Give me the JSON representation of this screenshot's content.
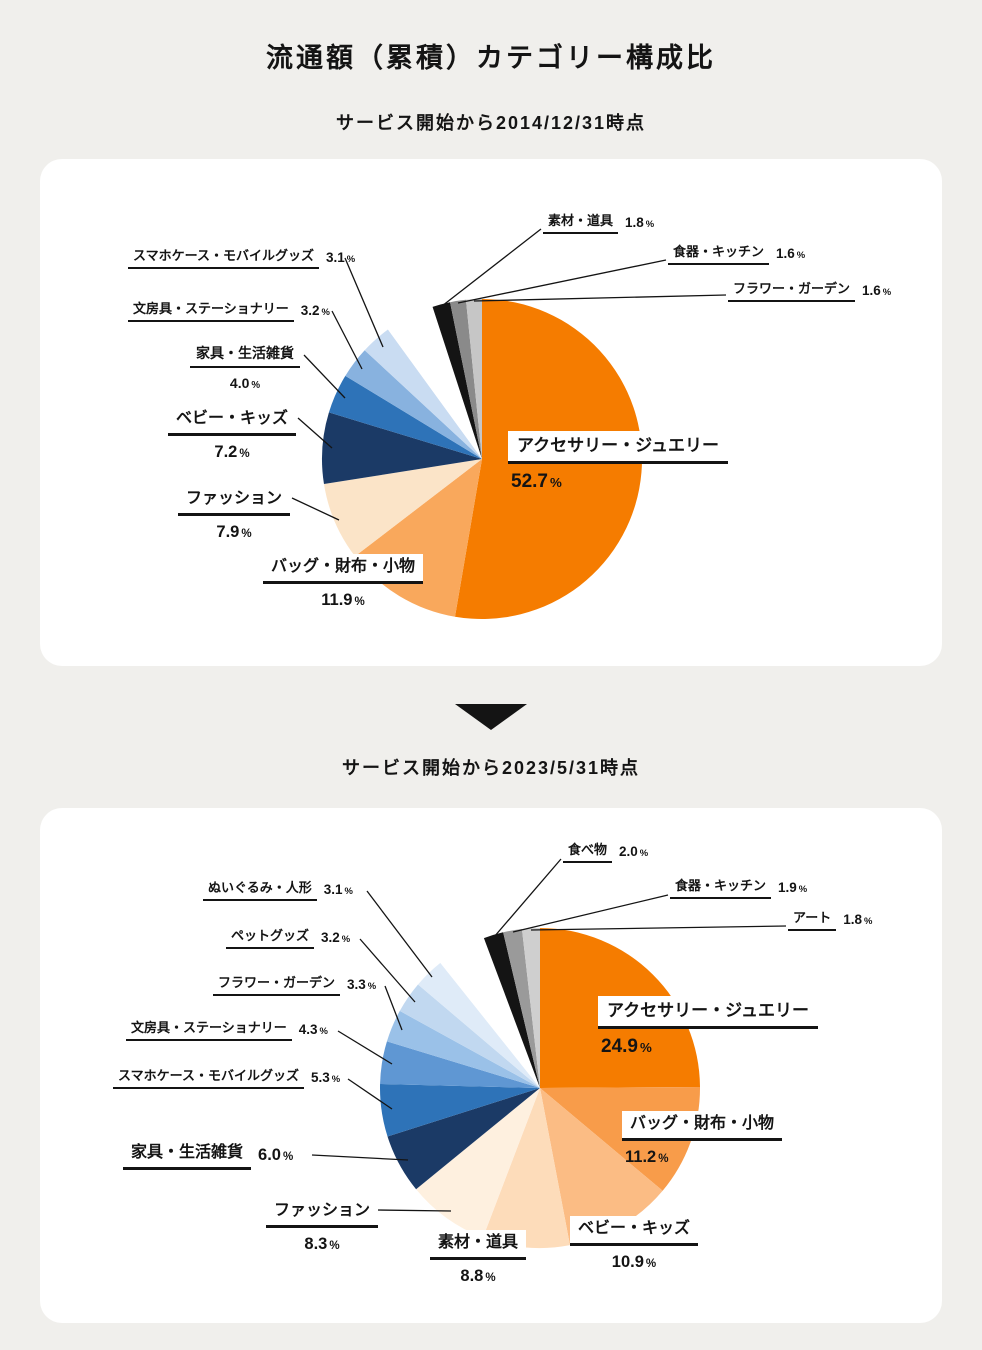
{
  "page_title": "流通額（累積）カテゴリー構成比",
  "unit": "%",
  "colors": {
    "page_background": "#F0EFEC",
    "card_background": "#FFFFFF",
    "text": "#141414",
    "accent_orange": "#F57C00",
    "accent_navy": "#1B3A66"
  },
  "chart_data": [
    {
      "type": "pie",
      "title": "サービス開始から2014/12/31時点",
      "start_angle": "top",
      "direction": "clockwise",
      "slices": [
        {
          "label": "アクセサリー・ジュエリー",
          "value": 52.7,
          "value_label": "52.7",
          "color": "#F57C00"
        },
        {
          "label": "バッグ・財布・小物",
          "value": 11.9,
          "value_label": "11.9",
          "color": "#F9A85C"
        },
        {
          "label": "ファッション",
          "value": 7.9,
          "value_label": "7.9",
          "color": "#FBE4C8"
        },
        {
          "label": "ベビー・キッズ",
          "value": 7.2,
          "value_label": "7.2",
          "color": "#1B3A66"
        },
        {
          "label": "家具・生活雑貨",
          "value": 4.0,
          "value_label": "4.0",
          "color": "#2E73B8"
        },
        {
          "label": "文房具・ステーショナリー",
          "value": 3.2,
          "value_label": "3.2",
          "color": "#88B2DF"
        },
        {
          "label": "スマホケース・モバイルグッズ",
          "value": 3.1,
          "value_label": "3.1",
          "color": "#C9DCF2"
        },
        {
          "label": "",
          "value": 5.0,
          "value_label": "",
          "color": "#FFFFFF"
        },
        {
          "label": "素材・道具",
          "value": 1.8,
          "value_label": "1.8",
          "color": "#141414"
        },
        {
          "label": "食器・キッチン",
          "value": 1.6,
          "value_label": "1.6",
          "color": "#8A8A8A"
        },
        {
          "label": "フラワー・ガーデン",
          "value": 1.6,
          "value_label": "1.6",
          "color": "#C6C6C6"
        }
      ]
    },
    {
      "type": "pie",
      "title": "サービス開始から2023/5/31時点",
      "start_angle": "top",
      "direction": "clockwise",
      "slices": [
        {
          "label": "アクセサリー・ジュエリー",
          "value": 24.9,
          "value_label": "24.9",
          "color": "#F57C00"
        },
        {
          "label": "バッグ・財布・小物",
          "value": 11.2,
          "value_label": "11.2",
          "color": "#F89C4A"
        },
        {
          "label": "ベビー・キッズ",
          "value": 10.9,
          "value_label": "10.9",
          "color": "#FBBC84"
        },
        {
          "label": "素材・道具",
          "value": 8.8,
          "value_label": "8.8",
          "color": "#FDDCBA"
        },
        {
          "label": "ファッション",
          "value": 8.3,
          "value_label": "8.3",
          "color": "#FEF0DF"
        },
        {
          "label": "家具・生活雑貨",
          "value": 6.0,
          "value_label": "6.0",
          "color": "#1B3A66"
        },
        {
          "label": "スマホケース・モバイルグッズ",
          "value": 5.3,
          "value_label": "5.3",
          "color": "#2E73B8"
        },
        {
          "label": "文房具・ステーショナリー",
          "value": 4.3,
          "value_label": "4.3",
          "color": "#5F97D3"
        },
        {
          "label": "フラワー・ガーデン",
          "value": 3.3,
          "value_label": "3.3",
          "color": "#9AC1E8"
        },
        {
          "label": "ペットグッズ",
          "value": 3.2,
          "value_label": "3.2",
          "color": "#C1D8F0"
        },
        {
          "label": "ぬいぐるみ・人形",
          "value": 3.1,
          "value_label": "3.1",
          "color": "#DFEBF8"
        },
        {
          "label": "",
          "value": 5.0,
          "value_label": "",
          "color": "#FFFFFF"
        },
        {
          "label": "食べ物",
          "value": 2.0,
          "value_label": "2.0",
          "color": "#141414"
        },
        {
          "label": "食器・キッチン",
          "value": 1.9,
          "value_label": "1.9",
          "color": "#9A9A9A"
        },
        {
          "label": "アート",
          "value": 1.8,
          "value_label": "1.8",
          "color": "#CFCFCF"
        }
      ]
    }
  ]
}
